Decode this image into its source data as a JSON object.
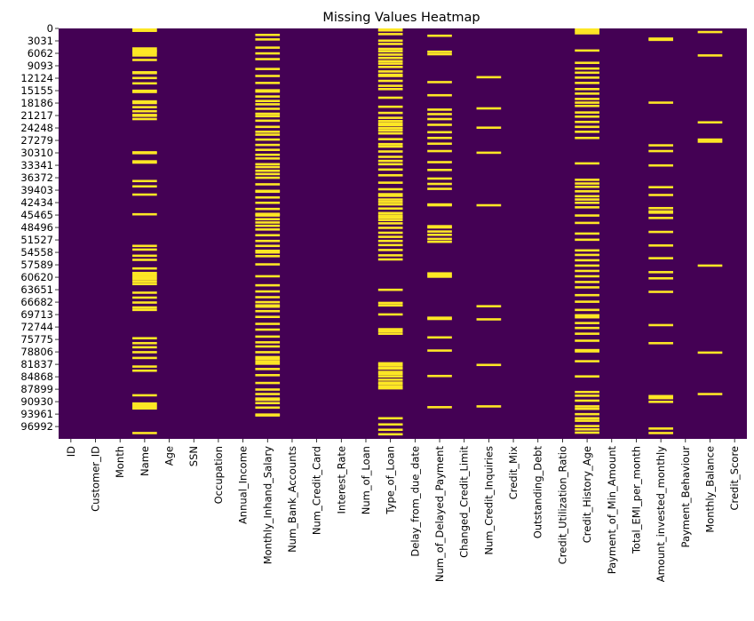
{
  "chart_data": {
    "type": "heatmap",
    "title": "Missing Values Heatmap",
    "colormap": "viridis",
    "colors": {
      "present": "#440154",
      "missing": "#fde725",
      "background": "#ffffff",
      "text": "#000000"
    },
    "colorbar": false,
    "n_rows": 100000,
    "y_tick_labels": [
      "0",
      "3031",
      "6062",
      "9093",
      "12124",
      "15155",
      "18186",
      "21217",
      "24248",
      "27279",
      "30310",
      "33341",
      "36372",
      "39403",
      "42434",
      "45465",
      "48496",
      "51527",
      "54558",
      "57589",
      "60620",
      "63651",
      "66682",
      "69713",
      "72744",
      "75775",
      "78806",
      "81837",
      "84868",
      "87899",
      "90930",
      "93961",
      "96992"
    ],
    "columns": [
      "ID",
      "Customer_ID",
      "Month",
      "Name",
      "Age",
      "SSN",
      "Occupation",
      "Annual_Income",
      "Monthly_Inhand_Salary",
      "Num_Bank_Accounts",
      "Num_Credit_Card",
      "Interest_Rate",
      "Num_of_Loan",
      "Type_of_Loan",
      "Delay_from_due_date",
      "Num_of_Delayed_Payment",
      "Changed_Credit_Limit",
      "Num_Credit_Inquiries",
      "Credit_Mix",
      "Outstanding_Debt",
      "Credit_Utilization_Ratio",
      "Credit_History_Age",
      "Payment_of_Min_Amount",
      "Total_EMI_per_month",
      "Amount_invested_monthly",
      "Payment_Behaviour",
      "Monthly_Balance",
      "Credit_Score"
    ],
    "missing_rows": {
      "Name": [
        0,
        300,
        4600,
        5100,
        5300,
        5800,
        6300,
        7400,
        10400,
        10600,
        11800,
        13100,
        14900,
        15200,
        17500,
        17900,
        18900,
        19900,
        20800,
        21000,
        21800,
        29900,
        30100,
        32100,
        32400,
        36900,
        38200,
        40200,
        45000,
        52700,
        53600,
        55100,
        56100,
        58200,
        59300,
        59800,
        60300,
        60800,
        61400,
        62000,
        64100,
        65300,
        66500,
        67700,
        68300,
        75200,
        76400,
        77400,
        78600,
        80000,
        82100,
        83100,
        89100,
        91100,
        91500,
        91900,
        92300,
        98300
      ],
      "Monthly_Inhand_Salary": [
        1300,
        2400,
        4400,
        5800,
        7200,
        9600,
        11300,
        13000,
        14800,
        15100,
        16300,
        17400,
        18200,
        19300,
        20500,
        21100,
        22200,
        23700,
        24900,
        25600,
        26800,
        28100,
        29300,
        30500,
        31400,
        32800,
        33500,
        34400,
        35200,
        36100,
        37700,
        39300,
        39500,
        40900,
        42200,
        43700,
        44900,
        45100,
        45300,
        46200,
        47000,
        47800,
        48700,
        50100,
        51500,
        52700,
        53900,
        54300,
        55200,
        57200,
        60100,
        62300,
        63800,
        65200,
        66400,
        67200,
        67500,
        68600,
        70000,
        71700,
        73100,
        74800,
        76200,
        77200,
        78600,
        79800,
        80300,
        80900,
        81400,
        82700,
        84200,
        86100,
        87700,
        88800,
        89900,
        90200,
        91000,
        92100,
        93800,
        94000
      ],
      "Type_of_Loan": [
        0,
        200,
        1100,
        2700,
        3500,
        4700,
        5300,
        6100,
        6900,
        7700,
        8300,
        9100,
        10200,
        11000,
        11300,
        12500,
        13700,
        14500,
        16600,
        18800,
        20300,
        21500,
        22300,
        22900,
        23300,
        24000,
        24600,
        25300,
        26700,
        27900,
        28500,
        29700,
        31000,
        32000,
        32800,
        34100,
        35500,
        37300,
        38900,
        40100,
        40500,
        41400,
        42000,
        42600,
        43600,
        44700,
        45300,
        45800,
        46400,
        47200,
        48300,
        49500,
        50500,
        51500,
        52500,
        53700,
        55000,
        56000,
        63400,
        66600,
        67200,
        69400,
        73000,
        73500,
        74100,
        81300,
        81700,
        82300,
        82600,
        83400,
        83900,
        84500,
        85300,
        86000,
        86400,
        87000,
        87400,
        94700,
        96200,
        97500,
        98600
      ],
      "Num_of_Delayed_Payment": [
        1500,
        5400,
        6000,
        12800,
        16000,
        19500,
        20600,
        21800,
        23200,
        25000,
        26400,
        27800,
        29600,
        32300,
        34200,
        36300,
        37600,
        38800,
        42600,
        42800,
        47900,
        48200,
        49200,
        50000,
        51000,
        51700,
        59400,
        59800,
        60200,
        70200,
        70500,
        75000,
        78200,
        84400,
        92000
      ],
      "Num_Credit_Inquiries": [
        11600,
        19200,
        23900,
        30000,
        42800,
        67400,
        70600,
        81700,
        91800
      ],
      "Credit_History_Age": [
        0,
        400,
        900,
        5100,
        8100,
        9500,
        10500,
        11700,
        13000,
        14500,
        15600,
        16900,
        17800,
        18600,
        20200,
        21200,
        22500,
        23700,
        24900,
        26400,
        32600,
        36600,
        37500,
        38300,
        39400,
        40600,
        41400,
        42200,
        43300,
        45300,
        47100,
        49700,
        51200,
        53800,
        54900,
        56200,
        57500,
        58800,
        60100,
        61500,
        62800,
        64700,
        66300,
        68300,
        69600,
        70100,
        71500,
        72700,
        74100,
        75800,
        78100,
        78400,
        80800,
        84500,
        88300,
        89200,
        90400,
        91800,
        92400,
        93700,
        94700,
        95300,
        96600,
        97400,
        98200
      ],
      "Amount_invested_monthly": [
        2200,
        2500,
        17800,
        28200,
        29600,
        33100,
        38400,
        40300,
        43500,
        44300,
        44600,
        45900,
        49300,
        52600,
        55700,
        59100,
        60600,
        63900,
        72000,
        76400,
        89300,
        89800,
        90700,
        97200,
        98300
      ],
      "Monthly_Balance": [
        600,
        6300,
        22600,
        26800,
        27300,
        57500,
        78700,
        88800
      ]
    }
  }
}
